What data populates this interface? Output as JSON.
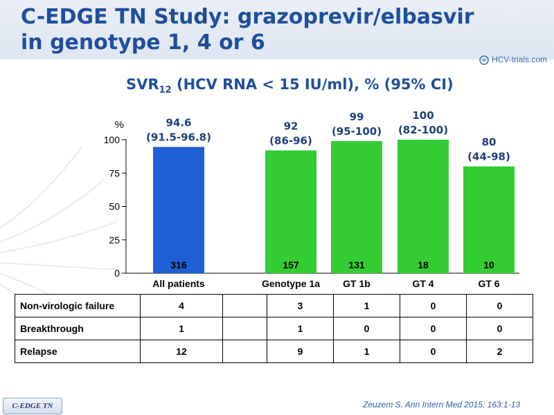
{
  "header": {
    "title_line1": "C-EDGE TN Study: grazoprevir/elbasvir",
    "title_line2": "in genotype 1, 4 or 6",
    "logo_text": "HCV-trials.com"
  },
  "chart_data": {
    "type": "bar",
    "title": "SVR₁₂ (HCV RNA < 15 IU/ml), % (95% CI)",
    "title_main": "SVR",
    "title_sub": "12",
    "title_rest": " (HCV RNA < 15 IU/ml), % (95% CI)",
    "ylabel": "%",
    "ylim": [
      0,
      100
    ],
    "yticks": [
      "0",
      "25",
      "50",
      "75",
      "100"
    ],
    "grid": false,
    "categories": [
      "All patients",
      "Genotype 1a",
      "GT 1b",
      "GT 4",
      "GT 6"
    ],
    "values": [
      94.6,
      92,
      99,
      100,
      80
    ],
    "value_labels": [
      "94.6",
      "92",
      "99",
      "100",
      "80"
    ],
    "ci_labels": [
      "(91.5-96.8)",
      "(86-96)",
      "(95-100)",
      "(82-100)",
      "(44-98)"
    ],
    "n_labels": [
      "316",
      "157",
      "131",
      "18",
      "10"
    ],
    "colors": [
      "#1f5fd6",
      "#33cc33",
      "#33cc33",
      "#33cc33",
      "#33cc33"
    ]
  },
  "table": {
    "rows": [
      {
        "label": "Non-virologic failure",
        "values": [
          "4",
          "",
          "3",
          "1",
          "0",
          "0"
        ]
      },
      {
        "label": "Breakthrough",
        "values": [
          "1",
          "",
          "1",
          "0",
          "0",
          "0"
        ]
      },
      {
        "label": "Relapse",
        "values": [
          "12",
          "",
          "9",
          "1",
          "0",
          "2"
        ]
      }
    ]
  },
  "footer": {
    "badge": "C-EDGE TN",
    "citation": "Zeuzem S. Ann Intern Med 2015; 163:1-13"
  },
  "colors": {
    "title": "#1f4e9c",
    "value_label": "#1f3f7a",
    "blue_bar": "#1f5fd6",
    "green_bar": "#33cc33"
  }
}
